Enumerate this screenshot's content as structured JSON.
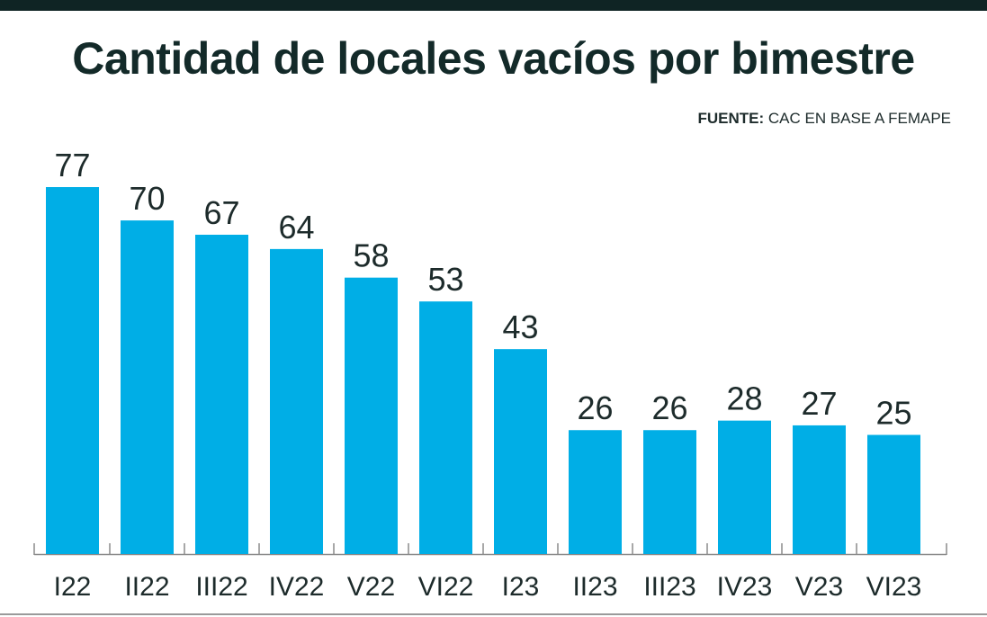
{
  "chart_data": {
    "type": "bar",
    "title": "Cantidad de locales vacíos por bimestre",
    "source_label": "FUENTE:",
    "source_text": " CAC EN BASE A FEMAPE",
    "categories": [
      "I22",
      "II22",
      "III22",
      "IV22",
      "V22",
      "VI22",
      "I23",
      "II23",
      "III23",
      "IV23",
      "V23",
      "VI23"
    ],
    "values": [
      77,
      70,
      67,
      64,
      58,
      53,
      43,
      26,
      26,
      28,
      27,
      25
    ],
    "xlabel": "",
    "ylabel": "",
    "ylim": [
      0,
      77
    ],
    "grid": false,
    "legend": "none",
    "bar_color": "#00aee6",
    "text_color": "#1d2b2b"
  }
}
